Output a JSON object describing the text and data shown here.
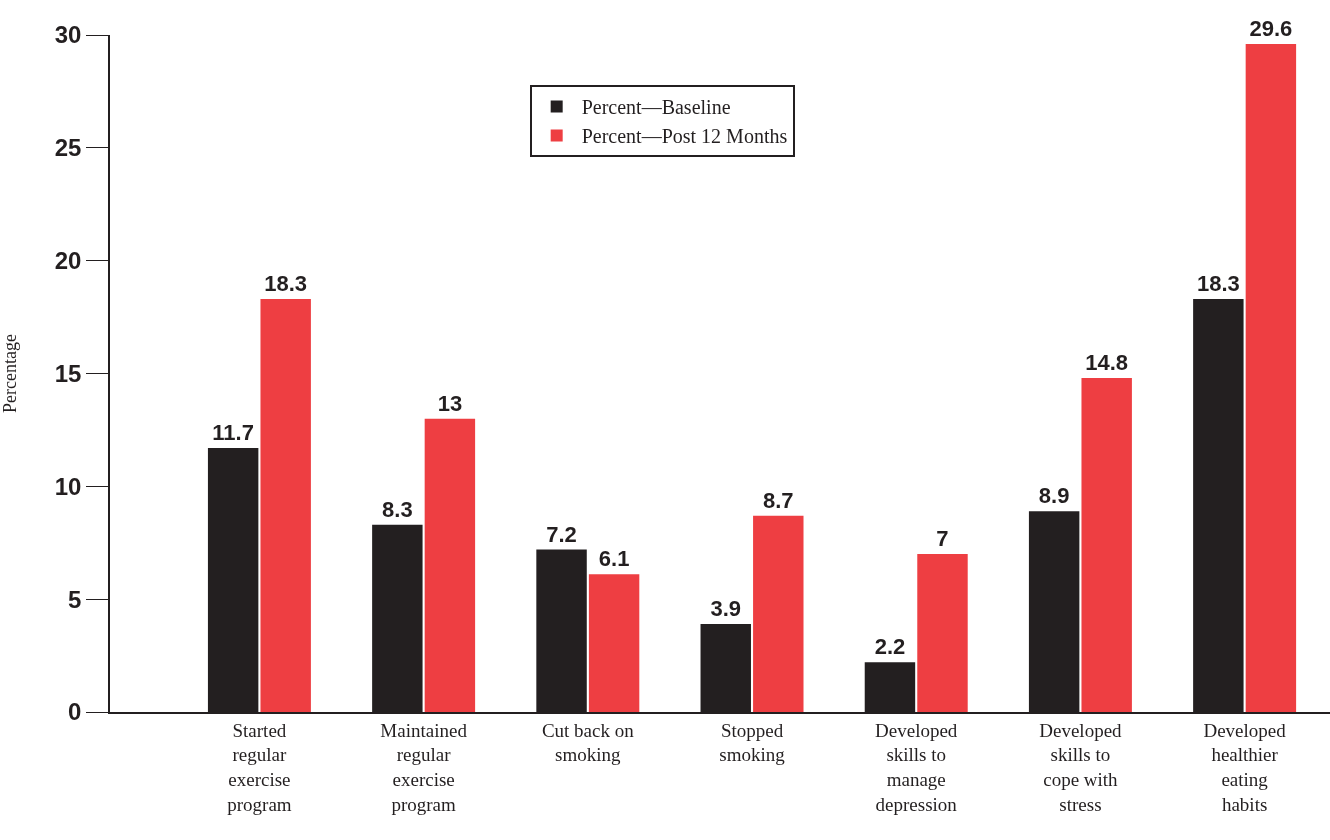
{
  "chart_data": {
    "type": "bar",
    "ylabel": "Percentage",
    "categories": [
      "Started regular exercise program",
      "Maintained regular exercise program",
      "Cut back on smoking",
      "Stopped smoking",
      "Developed skills to manage depression",
      "Developed skills to cope with stress",
      "Developed healthier eating habits"
    ],
    "series": [
      {
        "name": "Percent—Baseline",
        "color": "#231f20",
        "values": [
          11.7,
          8.3,
          7.2,
          3.9,
          2.2,
          8.9,
          18.3
        ]
      },
      {
        "name": "Percent—Post 12 Months",
        "color": "#ee3e42",
        "values": [
          18.3,
          13,
          6.1,
          8.7,
          7,
          14.8,
          29.6
        ]
      }
    ],
    "ylim": [
      0,
      30
    ],
    "yticks": [
      0,
      5,
      10,
      15,
      20,
      25,
      30
    ],
    "legend": "top",
    "data_labels": true
  }
}
